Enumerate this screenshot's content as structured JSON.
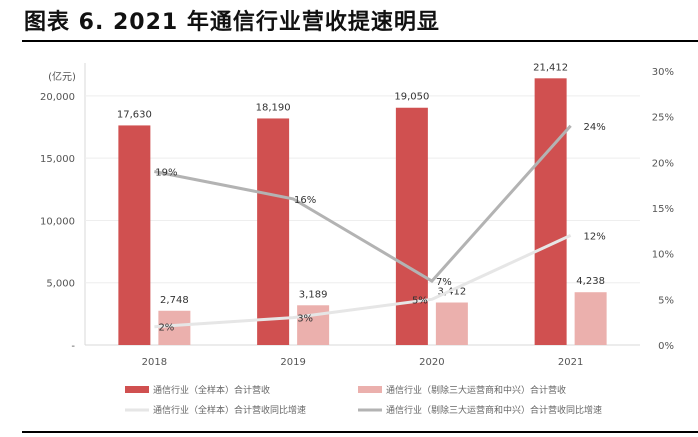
{
  "title": "图表 6. 2021 年通信行业营收提速明显",
  "chart_data": {
    "type": "bar+line",
    "title": "",
    "ylabel": "(亿元)",
    "categories": [
      "2018",
      "2019",
      "2020",
      "2021"
    ],
    "ylim": [
      0,
      22000
    ],
    "y_ticks": [
      "-",
      "5,000",
      "10,000",
      "15,000",
      "20,000"
    ],
    "y_tick_values": [
      0,
      5000,
      10000,
      15000,
      20000
    ],
    "y2lim": [
      0,
      30
    ],
    "y2_ticks": [
      "0%",
      "5%",
      "10%",
      "15%",
      "20%",
      "25%",
      "30%"
    ],
    "y2_tick_values": [
      0,
      5,
      10,
      15,
      20,
      25,
      30
    ],
    "legend_placement": "bottom",
    "series": [
      {
        "name": "通信行业（全样本）合计营收",
        "type": "bar",
        "axis": "left",
        "color": "#d05050",
        "values": [
          17630,
          18190,
          19050,
          21412
        ],
        "labels": [
          "17,630",
          "18,190",
          "19,050",
          "21,412"
        ]
      },
      {
        "name": "通信行业（剔除三大运营商和中兴）合计营收",
        "type": "bar",
        "axis": "left",
        "color": "#ebb0ad",
        "values": [
          2748,
          3189,
          3412,
          4238
        ],
        "labels": [
          "2,748",
          "3,189",
          "3,412",
          "4,238"
        ]
      },
      {
        "name": "通信行业（全样本）合计营收同比增速",
        "type": "line",
        "axis": "right",
        "color": "#e6e6e6",
        "values": [
          2,
          3,
          5,
          12
        ],
        "labels": [
          "2%",
          "3%",
          "5%",
          "12%"
        ]
      },
      {
        "name": "通信行业（剔除三大运营商和中兴）合计营收同比增速",
        "type": "line",
        "axis": "right",
        "color": "#b3b3b3",
        "values": [
          19,
          16,
          7,
          24
        ],
        "labels": [
          "19%",
          "16%",
          "7%",
          "24%"
        ]
      }
    ]
  }
}
